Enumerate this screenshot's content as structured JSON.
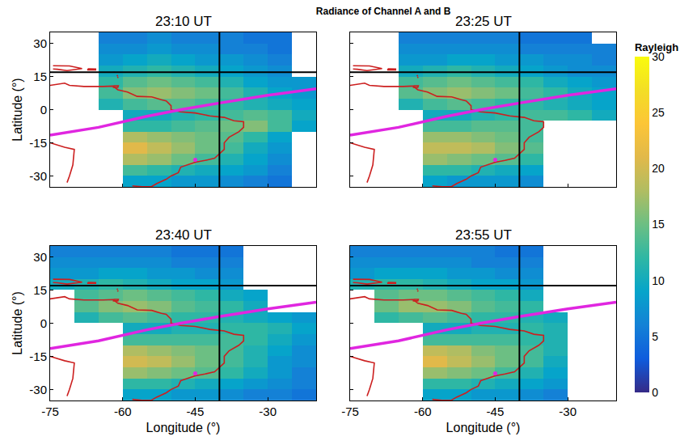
{
  "chart_data": {
    "type": "heatmap",
    "title": "Radiance of Channel A and B",
    "xlabel": "Longitude (°)",
    "ylabel": "Latitude (°)",
    "xlim": [
      -75,
      -20
    ],
    "ylim": [
      -35,
      35
    ],
    "xticks": [
      -75,
      -60,
      -45,
      -30
    ],
    "yticks": [
      -30,
      -15,
      0,
      15,
      30
    ],
    "x": [
      -72.5,
      -67.5,
      -62.5,
      -57.5,
      -52.5,
      -47.5,
      -42.5,
      -37.5,
      -32.5,
      -27.5,
      -22.5
    ],
    "y": [
      32.5,
      27.5,
      22.5,
      17.5,
      12.5,
      7.5,
      2.5,
      -2.5,
      -7.5,
      -12.5,
      -17.5,
      -22.5,
      -27.5,
      -32.5
    ],
    "colorbar": {
      "title": "Rayleigh",
      "range": [
        0,
        30
      ],
      "ticks": [
        0,
        5,
        10,
        15,
        20,
        25,
        30
      ]
    },
    "coastlines": {
      "color": "#cc1f1f",
      "lines": [
        {
          "lon": [
            -75,
            -72,
            -71,
            -68,
            -64,
            -62,
            -61,
            -59,
            -57,
            -54,
            -52,
            -51,
            -50,
            -50,
            -48,
            -45,
            -42,
            -39,
            -37,
            -35,
            -35,
            -36,
            -38,
            -39,
            -39,
            -40,
            -41,
            -43,
            -45,
            -48,
            -48.5,
            -50,
            -51,
            -53,
            -54,
            -56,
            -58
          ],
          "lat": [
            11,
            12,
            11,
            10.5,
            10.5,
            10.7,
            9,
            8,
            6,
            5.8,
            4.5,
            4,
            1.8,
            0,
            -1,
            -1.5,
            -2.8,
            -3.5,
            -5,
            -5.5,
            -8,
            -10,
            -12.5,
            -15,
            -18,
            -20,
            -22,
            -23,
            -23.8,
            -26,
            -28.5,
            -30,
            -31.5,
            -33.5,
            -34.8,
            -34.9,
            -34.5
          ]
        },
        {
          "lon": [
            -75,
            -72,
            -70,
            -70.3,
            -71,
            -71.5
          ],
          "lat": [
            -15,
            -17,
            -18,
            -25,
            -30,
            -33
          ]
        },
        {
          "lon": [
            -74.4,
            -72.8,
            -71,
            -68.4,
            -69.5,
            -71.5,
            -73.5,
            -74.4
          ],
          "lat": [
            19.9,
            19.9,
            19.8,
            18.6,
            18.3,
            17.7,
            18.3,
            18.4
          ]
        },
        {
          "lon": [
            -67.2,
            -65.6,
            -65.6,
            -67.2,
            -67.2
          ],
          "lat": [
            18.5,
            18.4,
            18.0,
            18.0,
            18.5
          ]
        },
        {
          "lon": [
            -61.8,
            -61.7
          ],
          "lat": [
            17.0,
            17.2
          ]
        },
        {
          "lon": [
            -61.2,
            -61.0
          ],
          "lat": [
            15.6,
            15.2
          ]
        },
        {
          "lon": [
            -61.1,
            -60.9
          ],
          "lat": [
            14.8,
            14.4
          ]
        },
        {
          "lon": [
            -61.9,
            -60.9,
            -61.0,
            -61.9,
            -61.9
          ],
          "lat": [
            10.8,
            10.8,
            10.1,
            10.1,
            10.8
          ]
        }
      ]
    },
    "magnetic_equator": {
      "color": "#e026e0",
      "lon": [
        -75,
        -65,
        -55,
        -48,
        -40,
        -30,
        -20
      ],
      "lat": [
        -11.5,
        -8,
        -3,
        0,
        3,
        6.5,
        9.5
      ]
    },
    "crosshair": {
      "color": "#000000",
      "lon": -40,
      "lat": 17
    },
    "site": {
      "color": "#e026e0",
      "lon": -45,
      "lat": -22.7
    },
    "panels": [
      {
        "title": "23:10 UT",
        "z": [
          [
            null,
            null,
            6,
            6,
            7,
            6,
            6,
            6,
            5,
            5,
            null
          ],
          [
            null,
            null,
            7,
            7,
            8,
            7,
            7,
            6,
            6,
            5,
            null
          ],
          [
            null,
            null,
            8,
            9,
            10,
            9,
            8,
            8,
            7,
            6,
            null
          ],
          [
            null,
            null,
            10,
            11,
            12,
            11,
            10,
            9,
            8,
            7,
            null
          ],
          [
            null,
            null,
            12,
            14,
            15,
            14,
            13,
            11,
            9,
            8,
            8
          ],
          [
            null,
            null,
            13,
            16,
            17,
            16,
            15,
            13,
            11,
            9,
            8
          ],
          [
            null,
            null,
            11,
            13,
            14,
            14,
            13,
            12,
            11,
            10,
            9
          ],
          [
            null,
            null,
            null,
            10,
            10,
            11,
            12,
            13,
            14,
            13,
            10
          ],
          [
            null,
            null,
            null,
            12,
            12,
            13,
            14,
            15,
            16,
            13,
            9
          ],
          [
            null,
            null,
            null,
            18,
            17,
            16,
            15,
            14,
            12,
            9,
            null
          ],
          [
            null,
            null,
            null,
            21,
            19,
            17,
            15,
            13,
            10,
            8,
            null
          ],
          [
            null,
            null,
            null,
            18,
            17,
            15,
            13,
            11,
            9,
            7,
            null
          ],
          [
            null,
            null,
            null,
            13,
            12,
            11,
            10,
            9,
            8,
            6,
            null
          ],
          [
            null,
            null,
            null,
            9,
            9,
            8,
            8,
            7,
            6,
            5,
            null
          ]
        ]
      },
      {
        "title": "23:25 UT",
        "z": [
          [
            null,
            null,
            6,
            6,
            6,
            6,
            6,
            5,
            5,
            5,
            null
          ],
          [
            null,
            null,
            7,
            7,
            7,
            7,
            7,
            6,
            6,
            6,
            6
          ],
          [
            null,
            null,
            8,
            8,
            9,
            9,
            8,
            8,
            7,
            7,
            6
          ],
          [
            null,
            null,
            10,
            11,
            12,
            11,
            10,
            9,
            8,
            7,
            7
          ],
          [
            null,
            null,
            13,
            14,
            15,
            14,
            13,
            12,
            10,
            9,
            8
          ],
          [
            null,
            null,
            14,
            16,
            17,
            16,
            15,
            13,
            12,
            10,
            9
          ],
          [
            null,
            null,
            11,
            13,
            14,
            13,
            12,
            12,
            11,
            10,
            9
          ],
          [
            null,
            null,
            null,
            10,
            10,
            11,
            12,
            13,
            13,
            12,
            10
          ],
          [
            null,
            null,
            null,
            13,
            13,
            14,
            14,
            13,
            null,
            null,
            null
          ],
          [
            null,
            null,
            null,
            17,
            17,
            16,
            15,
            13,
            null,
            null,
            null
          ],
          [
            null,
            null,
            null,
            19,
            19,
            18,
            16,
            14,
            null,
            null,
            null
          ],
          [
            null,
            null,
            null,
            17,
            16,
            15,
            14,
            12,
            null,
            null,
            null
          ],
          [
            null,
            null,
            null,
            12,
            12,
            11,
            10,
            9,
            null,
            null,
            null
          ],
          [
            null,
            null,
            null,
            9,
            8,
            8,
            8,
            7,
            null,
            null,
            null
          ]
        ]
      },
      {
        "title": "23:40 UT",
        "z": [
          [
            6,
            6,
            6,
            6,
            6,
            5,
            5,
            5,
            null,
            null,
            null
          ],
          [
            7,
            7,
            7,
            7,
            7,
            6,
            6,
            6,
            null,
            null,
            null
          ],
          [
            8,
            8,
            9,
            9,
            8,
            8,
            7,
            7,
            null,
            null,
            null
          ],
          [
            10,
            11,
            12,
            11,
            10,
            9,
            9,
            8,
            null,
            null,
            null
          ],
          [
            null,
            13,
            14,
            15,
            14,
            13,
            12,
            10,
            9,
            null,
            null
          ],
          [
            null,
            14,
            16,
            17,
            16,
            14,
            13,
            12,
            10,
            null,
            null
          ],
          [
            null,
            11,
            13,
            14,
            13,
            12,
            12,
            11,
            10,
            9,
            8
          ],
          [
            null,
            null,
            null,
            10,
            10,
            11,
            11,
            12,
            12,
            11,
            9
          ],
          [
            null,
            null,
            null,
            13,
            13,
            13,
            13,
            13,
            12,
            10,
            8
          ],
          [
            null,
            null,
            null,
            18,
            17,
            16,
            15,
            13,
            11,
            9,
            7
          ],
          [
            null,
            null,
            null,
            20,
            19,
            17,
            15,
            13,
            11,
            8,
            7
          ],
          [
            null,
            null,
            null,
            17,
            16,
            15,
            14,
            12,
            10,
            8,
            6
          ],
          [
            null,
            null,
            null,
            12,
            12,
            11,
            10,
            9,
            8,
            7,
            6
          ],
          [
            null,
            null,
            null,
            9,
            9,
            8,
            8,
            7,
            6,
            6,
            5
          ]
        ]
      },
      {
        "title": "23:55 UT",
        "z": [
          [
            6,
            6,
            6,
            6,
            6,
            6,
            5,
            5,
            null,
            null,
            null
          ],
          [
            7,
            7,
            7,
            7,
            7,
            6,
            6,
            6,
            null,
            null,
            null
          ],
          [
            8,
            9,
            9,
            9,
            8,
            8,
            7,
            7,
            null,
            null,
            null
          ],
          [
            11,
            12,
            12,
            11,
            10,
            9,
            9,
            8,
            null,
            null,
            null
          ],
          [
            null,
            14,
            15,
            15,
            14,
            13,
            12,
            10,
            null,
            null,
            null
          ],
          [
            null,
            15,
            17,
            17,
            16,
            14,
            13,
            12,
            null,
            null,
            null
          ],
          [
            null,
            12,
            13,
            14,
            13,
            12,
            12,
            11,
            10,
            null,
            null
          ],
          [
            null,
            null,
            null,
            10,
            10,
            11,
            11,
            12,
            11,
            null,
            null
          ],
          [
            null,
            null,
            null,
            13,
            13,
            13,
            13,
            12,
            11,
            null,
            null
          ],
          [
            null,
            null,
            null,
            19,
            18,
            16,
            15,
            13,
            11,
            null,
            null
          ],
          [
            null,
            null,
            null,
            21,
            19,
            17,
            15,
            13,
            10,
            null,
            null
          ],
          [
            null,
            null,
            null,
            17,
            16,
            15,
            13,
            11,
            9,
            null,
            null
          ],
          [
            null,
            null,
            null,
            12,
            12,
            11,
            10,
            9,
            8,
            null,
            null
          ],
          [
            null,
            null,
            null,
            9,
            9,
            8,
            8,
            7,
            6,
            null,
            null
          ]
        ]
      }
    ]
  }
}
